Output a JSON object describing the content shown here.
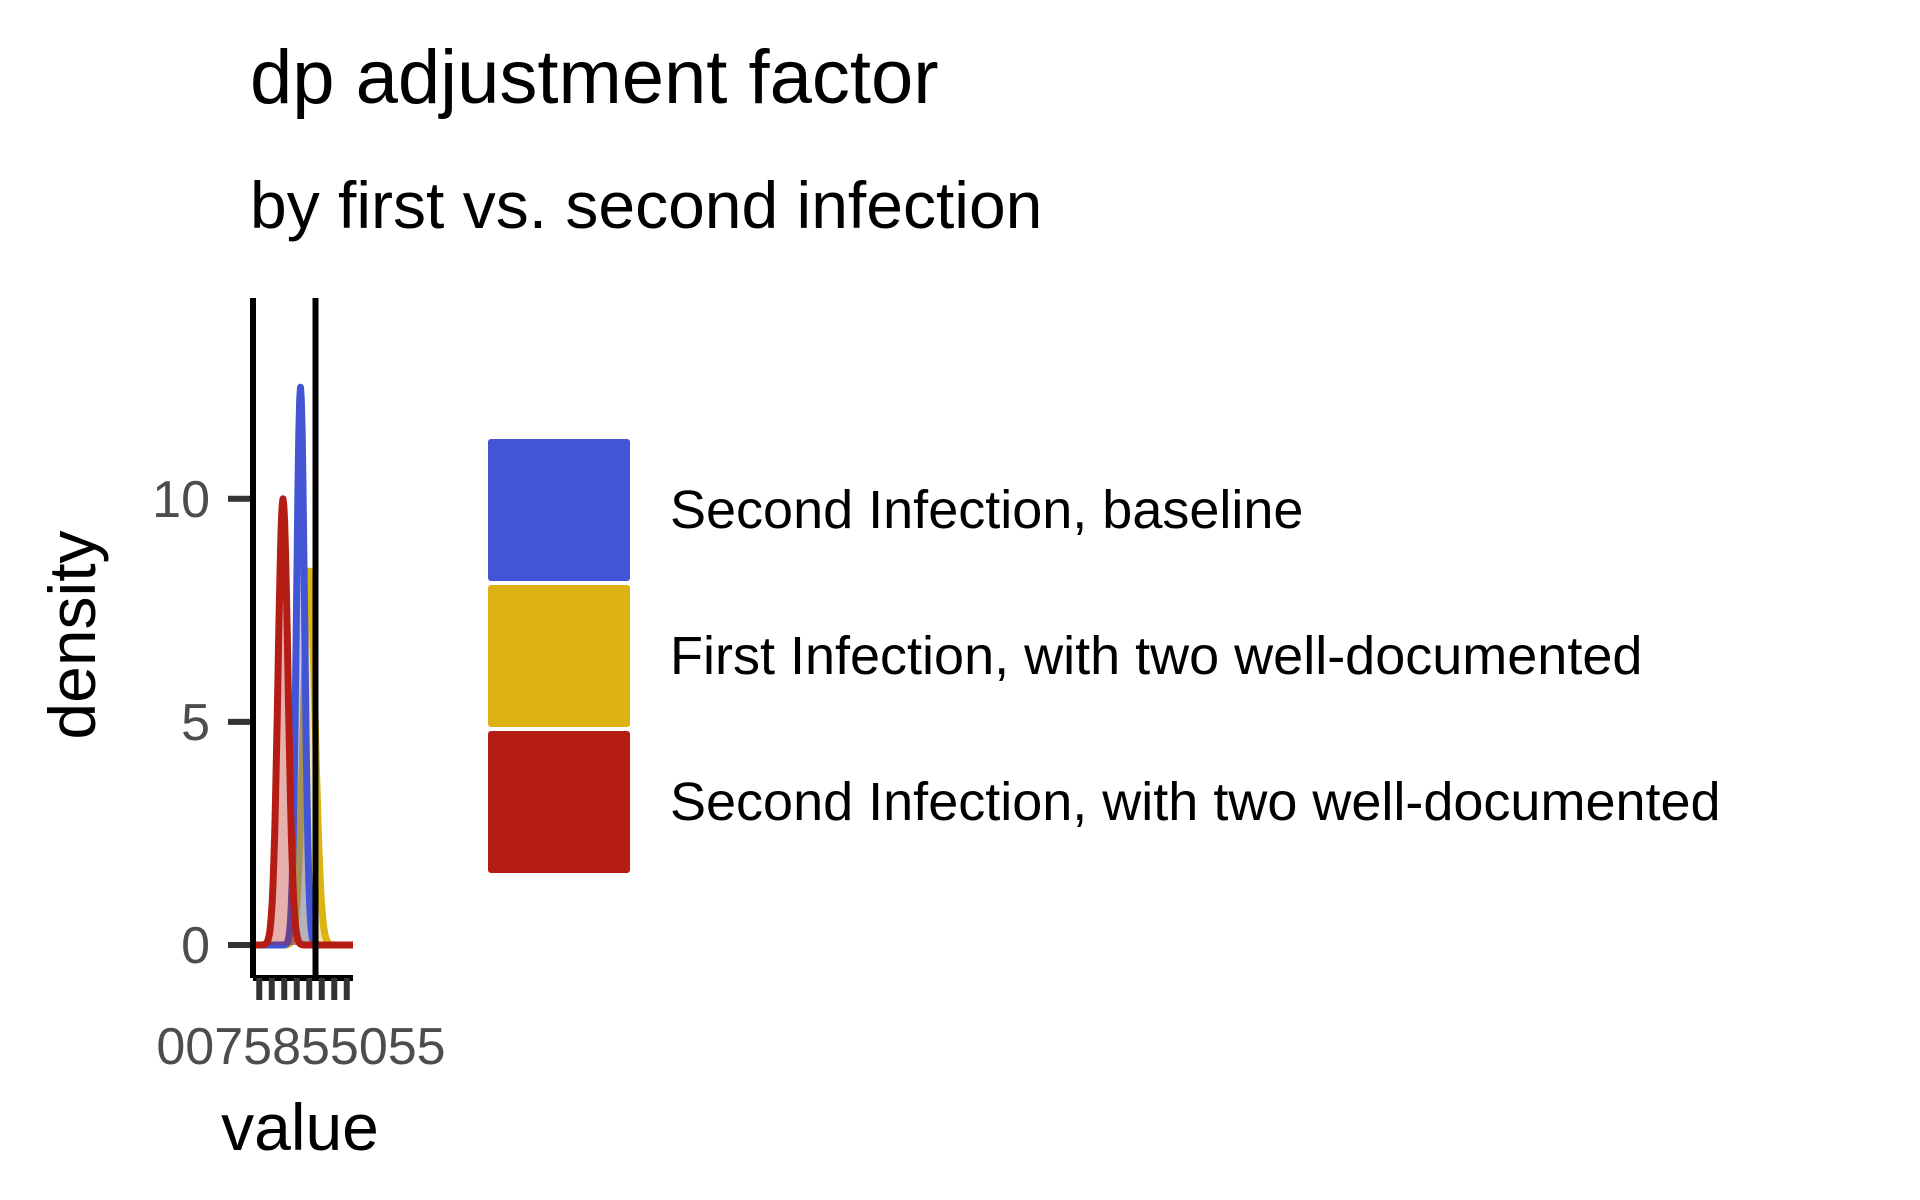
{
  "chart_data": {
    "type": "area",
    "title": "dp adjustment factor",
    "subtitle": "by first vs. second infection",
    "xlabel": "value",
    "ylabel": "density",
    "xlim": [
      0.7,
      1.5
    ],
    "ylim": [
      0,
      14.5
    ],
    "x_ticks": [
      0.75,
      0.85,
      0.95,
      1.05,
      1.15,
      1.25,
      1.35,
      1.45
    ],
    "x_tick_labels_overlapping": "0075855055",
    "y_ticks": [
      0,
      5,
      10
    ],
    "y_tick_labels": [
      "0",
      "5",
      "10"
    ],
    "vertical_reference_lines": [
      0.7,
      1.2
    ],
    "grid": false,
    "legend_position": "right",
    "series": [
      {
        "name": "Second Infection, baseline",
        "color": "#4155D5",
        "mean": 1.08,
        "sd": 0.032,
        "peak_density": 12.5
      },
      {
        "name": "First Infection, with two well-documented",
        "color": "#DDB313",
        "mean": 1.15,
        "sd": 0.047,
        "peak_density": 8.4
      },
      {
        "name": "Second Infection, with two well-documented",
        "color": "#B41C14",
        "mean": 0.94,
        "sd": 0.04,
        "peak_density": 10.0
      }
    ]
  }
}
